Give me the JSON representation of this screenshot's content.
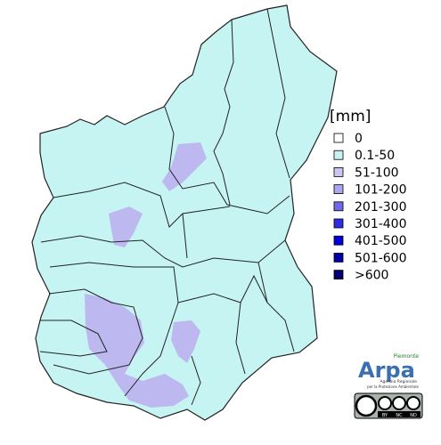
{
  "legend": {
    "title": "[mm]",
    "items": [
      {
        "label": "0",
        "color": "#ffffff"
      },
      {
        "label": "0.1-50",
        "color": "#c6f4f2"
      },
      {
        "label": "51-100",
        "color": "#c9c6f5"
      },
      {
        "label": "101-200",
        "color": "#aaa6f0"
      },
      {
        "label": "201-300",
        "color": "#6f6cec"
      },
      {
        "label": "301-400",
        "color": "#2f2ce6"
      },
      {
        "label": "401-500",
        "color": "#0000d8"
      },
      {
        "label": "501-600",
        "color": "#0000a6"
      },
      {
        "label": ">600",
        "color": "#000070"
      }
    ]
  },
  "logo": {
    "region": "Piemonte",
    "name": "Arpa",
    "subtitle_1": "Agenzia Regionale",
    "subtitle_2": "per la Protezione Ambientale",
    "license": [
      "BY",
      "NC",
      "ND"
    ]
  }
}
